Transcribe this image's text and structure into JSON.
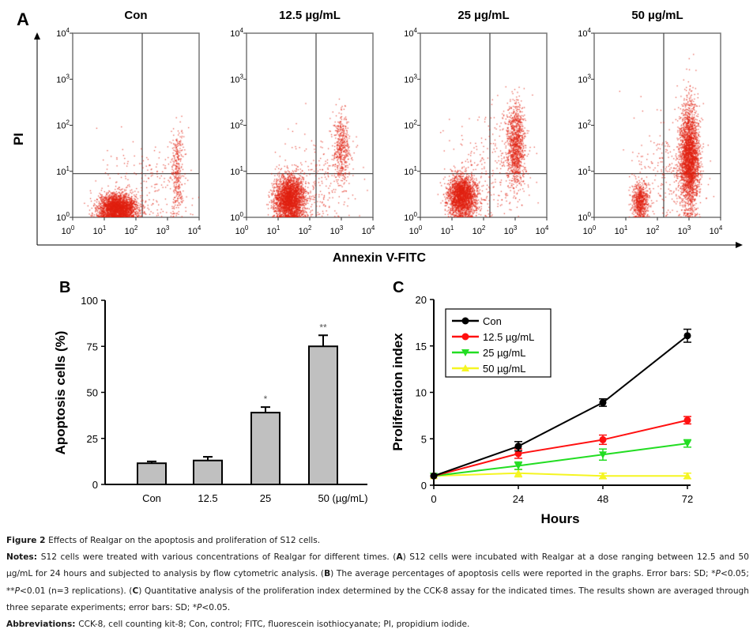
{
  "panel_A": {
    "label": "A",
    "y_axis_label": "PI",
    "x_axis_label": "Annexin V-FITC",
    "tick_labels": [
      "0",
      "1",
      "2",
      "3",
      "4"
    ],
    "tick_base": "10",
    "dot_color": "#e02010",
    "gate_x_log": 2.2,
    "gate_y_log": 0.95,
    "plots": [
      {
        "title": "Con"
      },
      {
        "title": "12.5 µg/mL"
      },
      {
        "title": "25 µg/mL"
      },
      {
        "title": "50 µg/mL"
      }
    ]
  },
  "chart_data": [
    {
      "panel_label": "B",
      "type": "bar",
      "categories": [
        "Con",
        "12.5",
        "25",
        "50 (µg/mL)"
      ],
      "values": [
        11.5,
        13,
        39,
        75
      ],
      "errors": [
        1,
        2,
        3,
        6
      ],
      "annotations": [
        "",
        "",
        "*",
        "**"
      ],
      "ylabel": "Apoptosis cells (%)",
      "xlabel": "",
      "ylim": [
        0,
        100
      ],
      "yticks": [
        "0",
        "25",
        "50",
        "75",
        "100"
      ],
      "bar_color": "#c0c0c0"
    },
    {
      "panel_label": "C",
      "type": "line",
      "x": [
        0,
        24,
        48,
        72
      ],
      "xticks": [
        "0",
        "24",
        "48",
        "72"
      ],
      "yticks": [
        "0",
        "5",
        "10",
        "15",
        "20"
      ],
      "xlabel": "Hours",
      "ylabel": "Proliferation index",
      "ylim": [
        0,
        20
      ],
      "xlim": [
        0,
        72
      ],
      "legend_position": "top-left",
      "series": [
        {
          "name": "Con",
          "values": [
            1,
            4.2,
            8.9,
            16.1
          ],
          "errors": [
            0,
            0.5,
            0.4,
            0.7
          ],
          "color": "#000000",
          "marker": "circle"
        },
        {
          "name": "12.5 µg/mL",
          "values": [
            1,
            3.4,
            4.9,
            7.0
          ],
          "errors": [
            0,
            0.5,
            0.5,
            0.4
          ],
          "color": "#ff1010",
          "marker": "circle"
        },
        {
          "name": "25 µg/mL",
          "values": [
            1,
            2.1,
            3.3,
            4.5
          ],
          "errors": [
            0,
            0.4,
            0.6,
            0.4
          ],
          "color": "#22dd22",
          "marker": "triangle-down"
        },
        {
          "name": "50 µg/mL",
          "values": [
            1,
            1.3,
            1.0,
            1.0
          ],
          "errors": [
            0,
            0.4,
            0.3,
            0.3
          ],
          "color": "#f5f522",
          "marker": "triangle-up"
        }
      ]
    }
  ],
  "caption": {
    "title": [
      {
        "t": "Figure 2 ",
        "s": "b"
      },
      {
        "t": "Effects of Realgar on the apoptosis and proliferation of S12 cells."
      }
    ],
    "notes": [
      {
        "t": "Notes: ",
        "s": "b"
      },
      {
        "t": "S12 cells were treated with various concentrations of Realgar for different times. ("
      },
      {
        "t": "A",
        "s": "b"
      },
      {
        "t": ") S12 cells were incubated with Realgar at a dose ranging between 12.5 and 50 µg/mL for 24 hours and subjected to analysis by flow cytometric analysis. ("
      },
      {
        "t": "B",
        "s": "b"
      },
      {
        "t": ") The average percentages of apoptosis cells were reported in the graphs. Error bars: SD; *"
      },
      {
        "t": "P",
        "s": "i"
      },
      {
        "t": "<0.05; **"
      },
      {
        "t": "P",
        "s": "i"
      },
      {
        "t": "<0.01 (n=3 replications). ("
      },
      {
        "t": "C",
        "s": "b"
      },
      {
        "t": ") Quantitative analysis of the proliferation index determined by the CCK-8 assay for the indicated times. The results shown are averaged through three separate experiments; error bars: SD; *"
      },
      {
        "t": "P",
        "s": "i"
      },
      {
        "t": "<0.05."
      }
    ],
    "abbreviations": [
      {
        "t": "Abbreviations: ",
        "s": "b"
      },
      {
        "t": "CCK-8, cell counting kit-8; Con, control; FITC, fluorescein isothiocyanate; PI, propidium iodide."
      }
    ]
  }
}
